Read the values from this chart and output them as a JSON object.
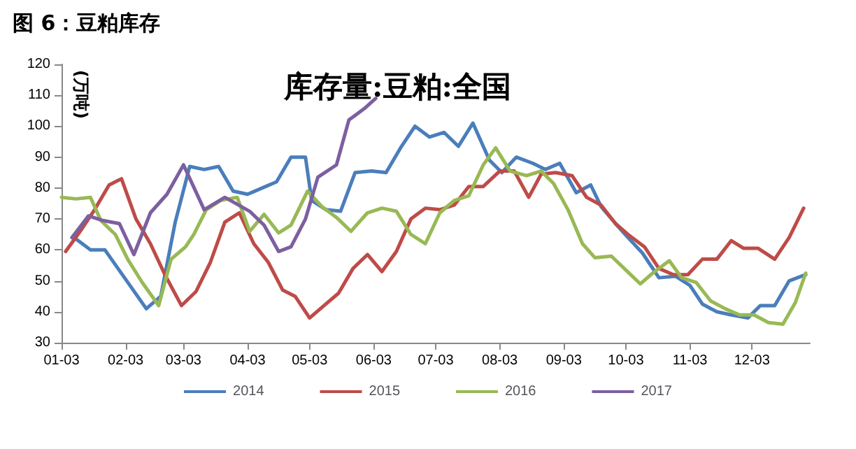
{
  "chart_data": {
    "type": "line",
    "title": "图 6：豆粕库存",
    "subtitle": "库存量:豆粕:全国",
    "ylabel": "(万吨)",
    "xlim": [
      "--01-03",
      "--12-31"
    ],
    "xticks": [
      {
        "value": "--01-03",
        "label": "01-03"
      },
      {
        "value": "--02-03",
        "label": "02-03"
      },
      {
        "value": "--03-03",
        "label": "03-03"
      },
      {
        "value": "--04-03",
        "label": "04-03"
      },
      {
        "value": "--05-03",
        "label": "05-03"
      },
      {
        "value": "--06-03",
        "label": "06-03"
      },
      {
        "value": "--07-03",
        "label": "07-03"
      },
      {
        "value": "--08-03",
        "label": "08-03"
      },
      {
        "value": "--09-03",
        "label": "09-03"
      },
      {
        "value": "--10-03",
        "label": "10-03"
      },
      {
        "value": "--11-03",
        "label": "11-03"
      },
      {
        "value": "--12-03",
        "label": "12-03"
      }
    ],
    "ylim": [
      30,
      120
    ],
    "yticks": [
      30,
      40,
      50,
      60,
      70,
      80,
      90,
      100,
      110,
      120
    ],
    "grid": false,
    "legend": "bottom",
    "marker": "none",
    "line_style": "solid",
    "series": [
      {
        "name": "2014",
        "color": "#4a7ebb",
        "x": [
          "--01-10",
          "--01-17",
          "--01-24",
          "--02-13",
          "--02-20",
          "--02-27",
          "--03-06",
          "--03-13",
          "--03-20",
          "--03-27",
          "--04-03",
          "--04-10",
          "--04-17",
          "--04-24",
          "--05-01",
          "--05-04",
          "--05-11",
          "--05-18",
          "--05-25",
          "--06-02",
          "--06-09",
          "--06-16",
          "--06-23",
          "--06-30",
          "--07-07",
          "--07-14",
          "--07-21",
          "--07-29",
          "--08-04",
          "--08-11",
          "--08-19",
          "--08-25",
          "--09-01",
          "--09-09",
          "--09-16",
          "--09-21",
          "--09-28",
          "--10-04",
          "--10-11",
          "--10-19",
          "--10-27",
          "--11-03",
          "--11-09",
          "--11-16",
          "--11-23",
          "--12-01",
          "--12-07",
          "--12-14",
          "--12-21",
          "--12-29"
        ],
        "values": [
          63.5,
          60,
          60,
          41,
          45,
          69,
          87,
          86,
          87,
          79,
          78,
          80,
          82,
          90,
          90,
          76,
          73,
          72.5,
          85,
          85.5,
          85,
          93,
          100,
          96.5,
          98,
          93.5,
          101,
          89,
          85,
          90,
          88,
          86,
          88,
          78.5,
          81,
          74,
          68.5,
          64,
          59,
          51,
          51.5,
          48.5,
          42.5,
          40,
          39,
          38,
          42,
          42,
          50,
          52
        ]
      },
      {
        "name": "2015",
        "color": "#be4b48",
        "x": [
          "--01-05",
          "--01-12",
          "--01-19",
          "--01-26",
          "--02-01",
          "--02-08",
          "--02-15",
          "--02-22",
          "--03-02",
          "--03-09",
          "--03-16",
          "--03-23",
          "--03-30",
          "--04-06",
          "--04-13",
          "--04-20",
          "--04-26",
          "--05-03",
          "--05-10",
          "--05-17",
          "--05-24",
          "--05-31",
          "--06-07",
          "--06-14",
          "--06-21",
          "--06-28",
          "--07-05",
          "--07-12",
          "--07-19",
          "--07-26",
          "--08-03",
          "--08-10",
          "--08-17",
          "--08-23",
          "--08-30",
          "--09-07",
          "--09-14",
          "--09-21",
          "--09-28",
          "--10-04",
          "--10-12",
          "--10-19",
          "--10-26",
          "--11-02",
          "--11-09",
          "--11-16",
          "--11-23",
          "--11-29",
          "--12-06",
          "--12-14",
          "--12-21",
          "--12-28"
        ],
        "values": [
          59.5,
          66,
          73,
          81,
          83,
          70,
          62,
          52,
          42,
          46.5,
          56,
          69,
          72,
          62,
          56,
          47,
          45,
          38,
          42,
          46,
          54,
          58.5,
          53,
          59.5,
          70,
          73.5,
          73,
          74.5,
          80.5,
          80.5,
          85.5,
          85.5,
          77,
          84.5,
          85,
          84,
          77,
          74.5,
          68.5,
          65,
          61,
          54,
          52,
          52,
          57,
          57,
          63,
          60.5,
          60.5,
          57,
          64,
          73.5
        ]
      },
      {
        "name": "2016",
        "color": "#98b954",
        "x": [
          "--01-03",
          "--01-10",
          "--01-17",
          "--01-22",
          "--01-29",
          "--02-04",
          "--02-11",
          "--02-19",
          "--02-25",
          "--03-04",
          "--03-08",
          "--03-14",
          "--03-21",
          "--03-29",
          "--04-04",
          "--04-11",
          "--04-18",
          "--04-24",
          "--05-02",
          "--05-09",
          "--05-16",
          "--05-23",
          "--05-31",
          "--06-07",
          "--06-14",
          "--06-21",
          "--06-28",
          "--07-05",
          "--07-12",
          "--07-19",
          "--07-26",
          "--08-01",
          "--08-08",
          "--08-16",
          "--08-23",
          "--08-29",
          "--09-05",
          "--09-12",
          "--09-18",
          "--09-26",
          "--10-03",
          "--10-10",
          "--10-16",
          "--10-24",
          "--10-30",
          "--11-06",
          "--11-13",
          "--11-20",
          "--11-27",
          "--12-04",
          "--12-11",
          "--12-18",
          "--12-24",
          "--12-29"
        ],
        "values": [
          77,
          76.5,
          77,
          69.5,
          65,
          57,
          49.5,
          42,
          57,
          61,
          65,
          73,
          76,
          77,
          66,
          71.5,
          65.5,
          68,
          79,
          74,
          70.5,
          66,
          72,
          73.5,
          72.5,
          65,
          62,
          72,
          76,
          77.5,
          87.5,
          93,
          85.5,
          84,
          85.5,
          81.5,
          73,
          62,
          57.5,
          58,
          53.5,
          49,
          52.5,
          56.5,
          51,
          49.5,
          43.5,
          41,
          39,
          39,
          36.5,
          36,
          43,
          52.5
        ]
      },
      {
        "name": "2017",
        "color": "#7d5fa0",
        "x": [
          "--01-08",
          "--01-16",
          "--01-23",
          "--01-31",
          "--02-07",
          "--02-15",
          "--02-23",
          "--03-03",
          "--03-13",
          "--03-23",
          "--04-04",
          "--04-11",
          "--04-18",
          "--04-24",
          "--05-01",
          "--05-07",
          "--05-16",
          "--05-22",
          "--05-30",
          "--06-04"
        ],
        "values": [
          64,
          71,
          69.5,
          68.5,
          58.5,
          72,
          78,
          87.5,
          73,
          77,
          72.5,
          68,
          59.5,
          61,
          70,
          83.5,
          87.5,
          102,
          106,
          109
        ]
      }
    ]
  }
}
